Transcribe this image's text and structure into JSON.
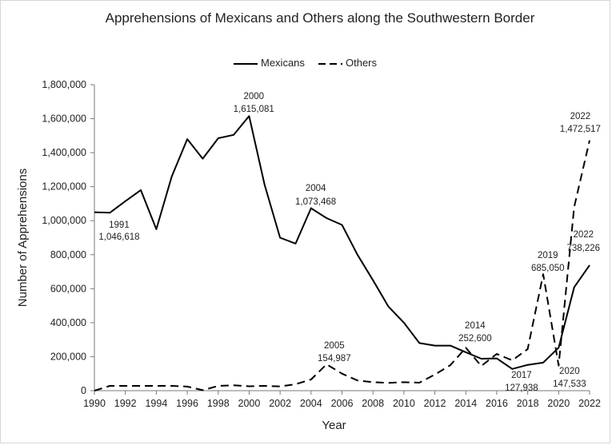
{
  "chart_data": {
    "type": "line",
    "title": "Apprehensions of Mexicans and Others along the Southwestern Border",
    "xlabel": "Year",
    "ylabel": "Number of Apprehensions",
    "xlim": [
      1990,
      2022
    ],
    "ylim": [
      0,
      1800000
    ],
    "x_ticks": [
      "1990",
      "1992",
      "1994",
      "1996",
      "1998",
      "2000",
      "2002",
      "2004",
      "2006",
      "2008",
      "2010",
      "2012",
      "2014",
      "2016",
      "2018",
      "2020",
      "2022"
    ],
    "y_ticks": [
      "0",
      "200,000",
      "400,000",
      "600,000",
      "800,000",
      "1,000,000",
      "1,200,000",
      "1,400,000",
      "1,600,000",
      "1,800,000"
    ],
    "legend_position": "top-center",
    "series": [
      {
        "name": "Mexicans",
        "style": "solid",
        "x": [
          1990,
          1991,
          1992,
          1993,
          1994,
          1995,
          1996,
          1997,
          1998,
          1999,
          2000,
          2001,
          2002,
          2003,
          2004,
          2005,
          2006,
          2007,
          2008,
          2009,
          2010,
          2011,
          2012,
          2013,
          2014,
          2015,
          2016,
          2017,
          2018,
          2019,
          2020,
          2021,
          2022
        ],
        "values": [
          1050000,
          1046618,
          1115000,
          1180000,
          950000,
          1260000,
          1480000,
          1365000,
          1485000,
          1505000,
          1615081,
          1210000,
          900000,
          865000,
          1073468,
          1015000,
          975000,
          800000,
          650000,
          495000,
          400000,
          280000,
          265000,
          265000,
          226000,
          188000,
          190000,
          127938,
          152000,
          165000,
          253000,
          608000,
          738226
        ]
      },
      {
        "name": "Others",
        "style": "dashed",
        "x": [
          1990,
          1991,
          1992,
          1993,
          1994,
          1995,
          1996,
          1997,
          1998,
          1999,
          2000,
          2001,
          2002,
          2003,
          2004,
          2005,
          2006,
          2007,
          2008,
          2009,
          2010,
          2011,
          2012,
          2013,
          2014,
          2015,
          2016,
          2017,
          2018,
          2019,
          2020,
          2021,
          2022
        ],
        "values": [
          0,
          28000,
          28000,
          28000,
          28000,
          28000,
          24000,
          3000,
          28000,
          32000,
          26000,
          28000,
          25000,
          38000,
          66000,
          154987,
          100000,
          60000,
          50000,
          46000,
          50000,
          47000,
          95000,
          150000,
          252600,
          145000,
          216000,
          178000,
          245000,
          685050,
          147533,
          1080000,
          1472517
        ]
      }
    ],
    "annotations": [
      {
        "year": "1991",
        "value": "1,046,618"
      },
      {
        "year": "2000",
        "value": "1,615,081"
      },
      {
        "year": "2004",
        "value": "1,073,468"
      },
      {
        "year": "2005",
        "value": "154,987"
      },
      {
        "year": "2014",
        "value": "252,600"
      },
      {
        "year": "2017",
        "value": "127,938"
      },
      {
        "year": "2019",
        "value": "685,050"
      },
      {
        "year": "2020",
        "value": "147,533"
      },
      {
        "year": "2022",
        "value": "1,472,517"
      },
      {
        "year": "2022",
        "value": "738,226"
      }
    ]
  },
  "colors": {
    "line": "#000000",
    "axis": "#7a7a7a",
    "text": "#222222",
    "border": "#d6d6d6"
  }
}
